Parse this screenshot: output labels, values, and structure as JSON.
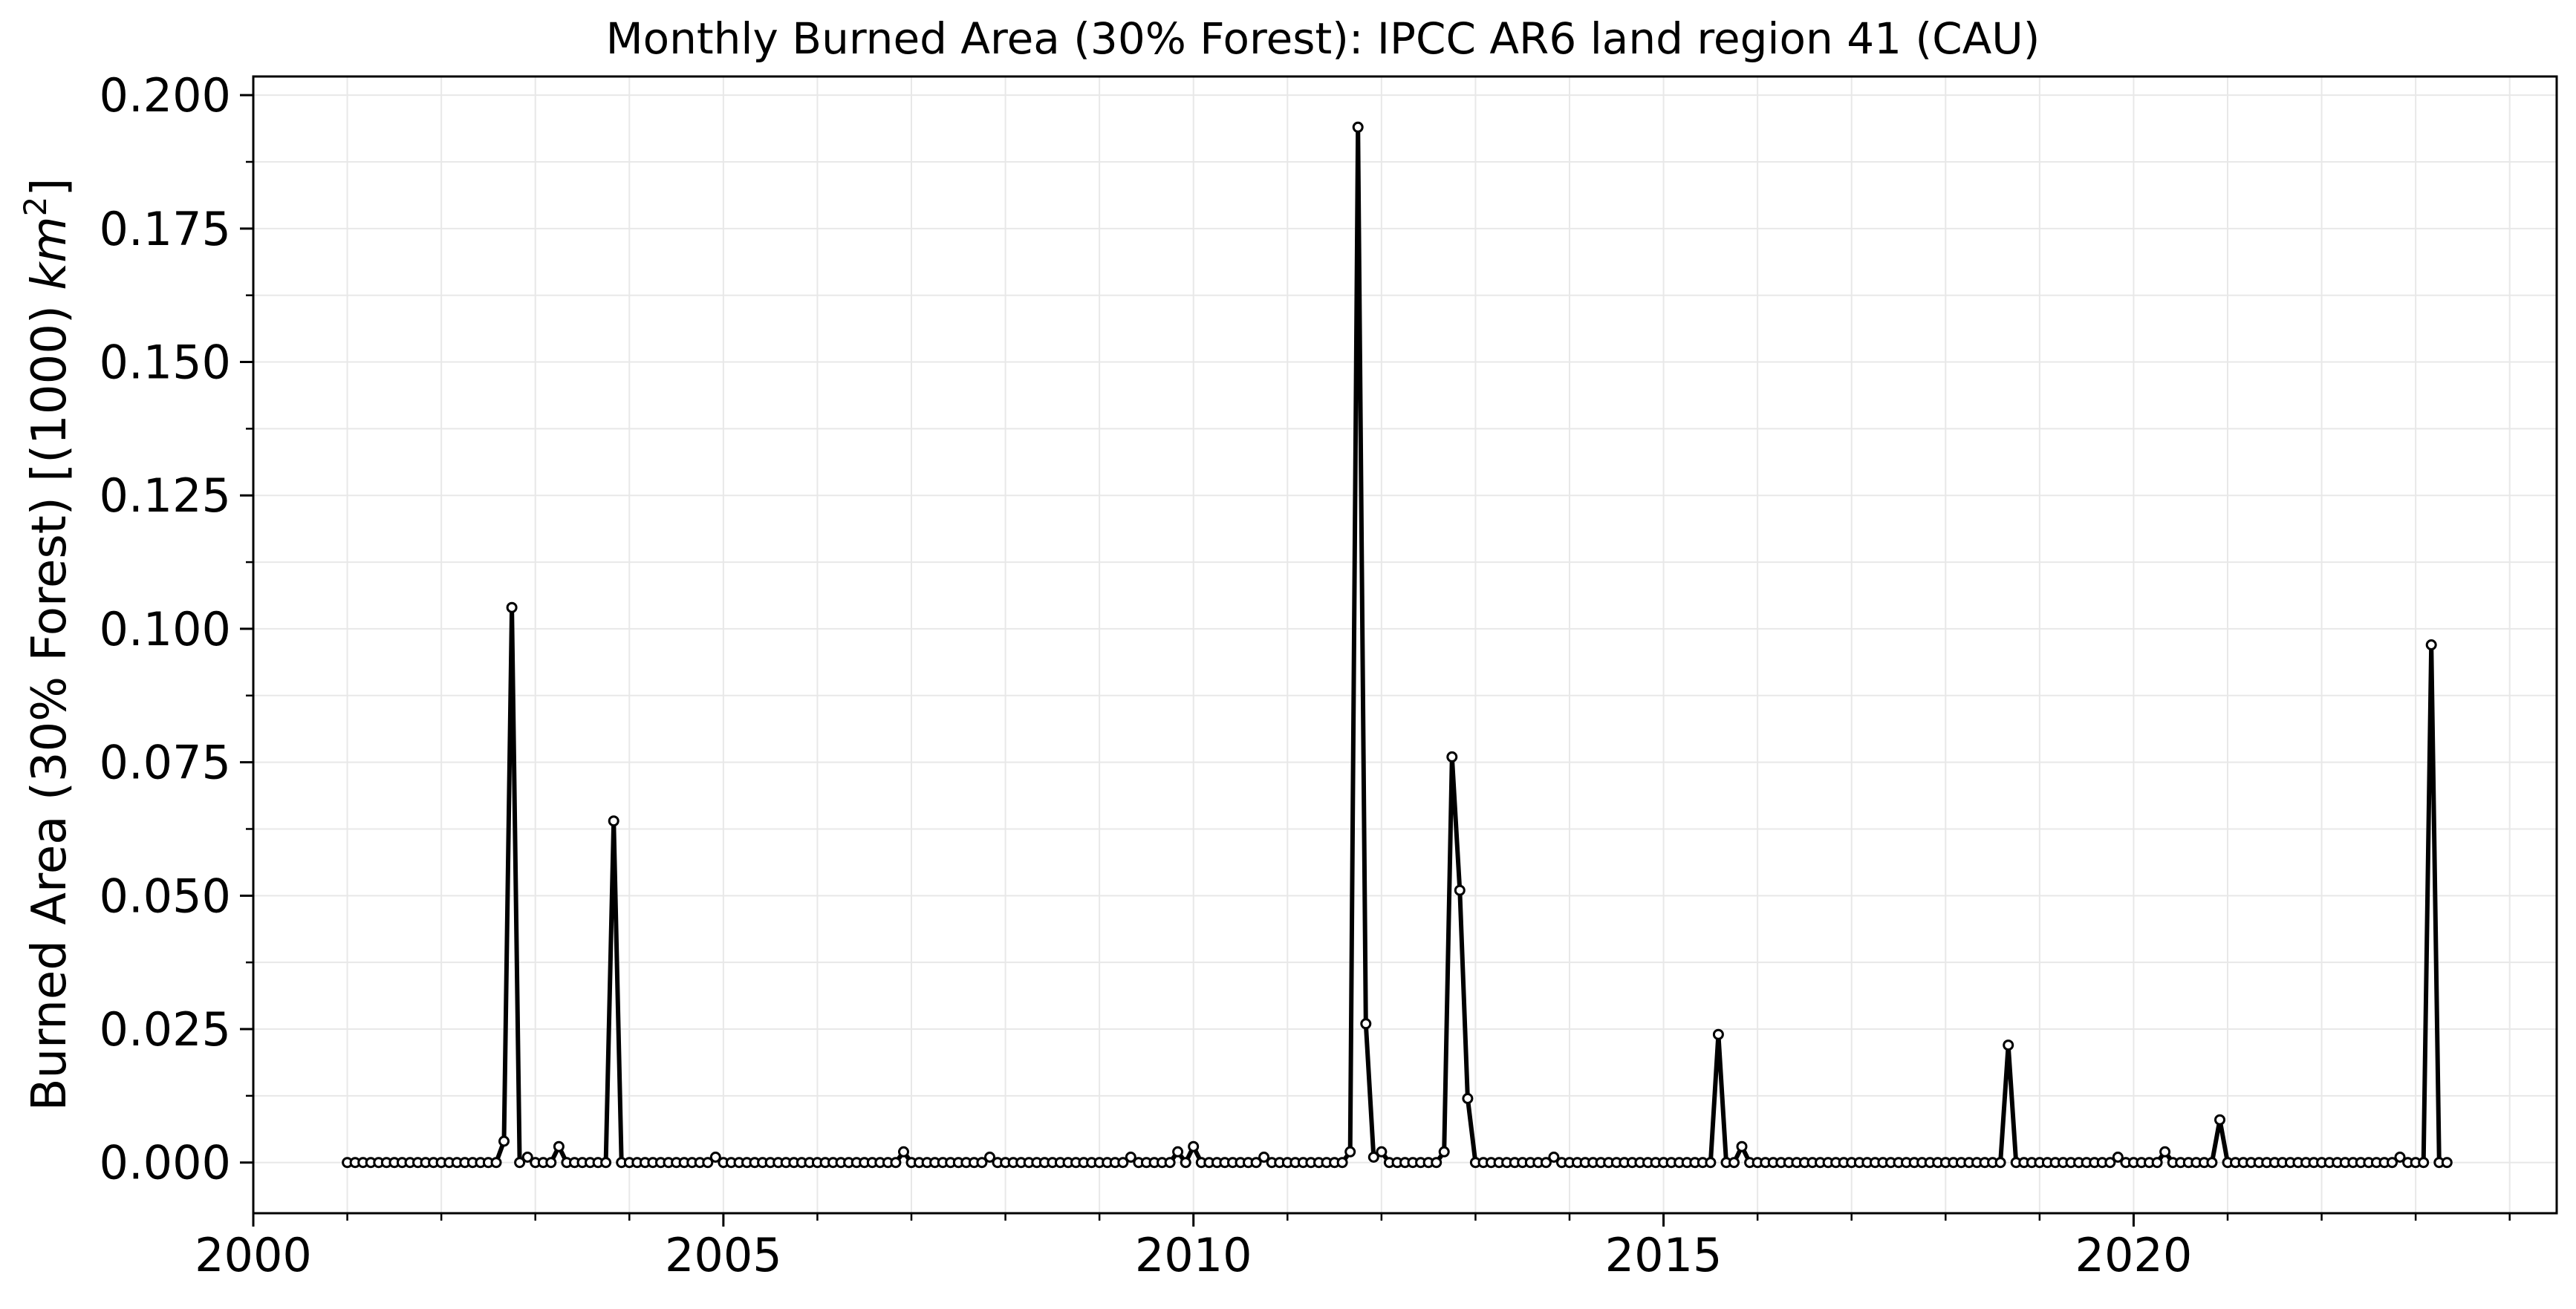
{
  "chart_data": {
    "type": "line",
    "title": "Monthly Burned Area (30% Forest): IPCC AR6 land region 41 (CAU)",
    "ylabel_text": "Burned Area (30% Forest) [(1000) ",
    "ylabel_unit": "km",
    "ylabel_sup": "2",
    "ylabel_close": "]",
    "xlabel": "",
    "xlim": [
      2000.0,
      2024.5
    ],
    "ylim": [
      -0.0095,
      0.2035
    ],
    "x_ticks": [
      2000,
      2005,
      2010,
      2015,
      2020
    ],
    "x_tick_labels": [
      "2000",
      "2005",
      "2010",
      "2015",
      "2020"
    ],
    "y_ticks": [
      0.0,
      0.025,
      0.05,
      0.075,
      0.1,
      0.125,
      0.15,
      0.175,
      0.2
    ],
    "y_tick_labels": [
      "0.000",
      "0.025",
      "0.050",
      "0.075",
      "0.100",
      "0.125",
      "0.150",
      "0.175",
      "0.200"
    ],
    "grid": true,
    "series": [
      {
        "start_year": 2001,
        "start_month": 1,
        "values": [
          0,
          0,
          0,
          0,
          0,
          0,
          0,
          0,
          0,
          0,
          0,
          0,
          0,
          0,
          0,
          0,
          0,
          0,
          0,
          0,
          0.004,
          0.104,
          0,
          0.001,
          0,
          0,
          0,
          0.003,
          0,
          0,
          0,
          0,
          0,
          0,
          0.064,
          0,
          0,
          0,
          0,
          0,
          0,
          0,
          0,
          0,
          0,
          0,
          0,
          0.001,
          0,
          0,
          0,
          0,
          0,
          0,
          0,
          0,
          0,
          0,
          0,
          0,
          0,
          0,
          0,
          0,
          0,
          0,
          0,
          0,
          0,
          0,
          0,
          0.002,
          0,
          0,
          0,
          0,
          0,
          0,
          0,
          0,
          0,
          0,
          0.001,
          0,
          0,
          0,
          0,
          0,
          0,
          0,
          0,
          0,
          0,
          0,
          0,
          0,
          0,
          0,
          0,
          0,
          0.001,
          0,
          0,
          0,
          0,
          0,
          0.002,
          0,
          0.003,
          0,
          0,
          0,
          0,
          0,
          0,
          0,
          0,
          0.001,
          0,
          0,
          0,
          0,
          0,
          0,
          0,
          0,
          0,
          0,
          0.002,
          0.194,
          0.026,
          0.001,
          0.002,
          0,
          0,
          0,
          0,
          0,
          0,
          0,
          0.002,
          0.076,
          0.051,
          0.012,
          0,
          0,
          0,
          0,
          0,
          0,
          0,
          0,
          0,
          0,
          0.001,
          0,
          0,
          0,
          0,
          0,
          0,
          0,
          0,
          0,
          0,
          0,
          0,
          0,
          0,
          0,
          0,
          0,
          0,
          0,
          0,
          0.024,
          0,
          0,
          0.003,
          0,
          0,
          0,
          0,
          0,
          0,
          0,
          0,
          0,
          0,
          0,
          0,
          0,
          0,
          0,
          0,
          0,
          0,
          0,
          0,
          0,
          0,
          0,
          0,
          0,
          0,
          0,
          0,
          0,
          0,
          0,
          0,
          0,
          0.022,
          0,
          0,
          0,
          0,
          0,
          0,
          0,
          0,
          0,
          0,
          0,
          0,
          0,
          0.001,
          0,
          0,
          0,
          0,
          0,
          0.002,
          0,
          0,
          0,
          0,
          0,
          0,
          0.008,
          0,
          0,
          0,
          0,
          0,
          0,
          0,
          0,
          0,
          0,
          0,
          0,
          0,
          0,
          0,
          0,
          0,
          0,
          0,
          0,
          0,
          0,
          0.001,
          0,
          0,
          0,
          0.097,
          0,
          0
        ]
      }
    ],
    "colors": {
      "line": "#000000",
      "marker_fill": "#ffffff",
      "marker_edge": "#000000",
      "grid": "#e8e8e8",
      "axes": "#000000"
    }
  }
}
